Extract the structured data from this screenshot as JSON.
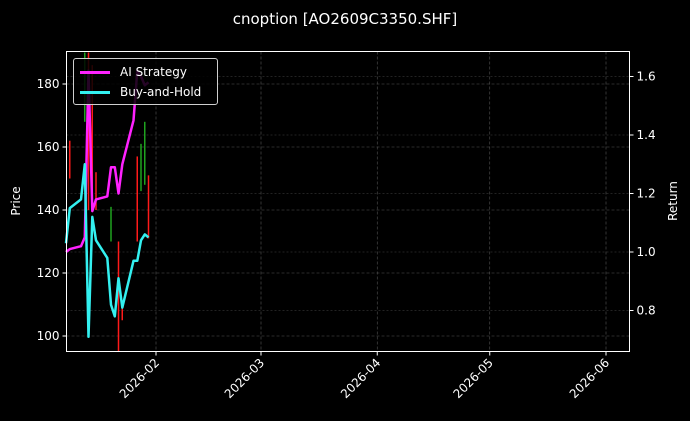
{
  "title": "cnoption [AO2609C3350.SHF]",
  "legend": {
    "items": [
      {
        "label": "AI Strategy",
        "color": "#ff22ff"
      },
      {
        "label": "Buy-and-Hold",
        "color": "#33f0f0"
      }
    ]
  },
  "axes": {
    "left_label": "Price",
    "right_label": "Return",
    "left_ticks": [
      "100",
      "120",
      "140",
      "160",
      "180"
    ],
    "right_ticks": [
      "0.8",
      "1.0",
      "1.2",
      "1.4",
      "1.6"
    ],
    "x_ticks": [
      "2026-02",
      "2026-03",
      "2026-04",
      "2026-05",
      "2026-06"
    ]
  },
  "chart_data": {
    "type": "line",
    "title": "cnoption [AO2609C3350.SHF]",
    "xlabel": "",
    "ylabel": "Price",
    "y2label": "Return",
    "ylim": [
      95,
      191
    ],
    "y2lim": [
      0.66,
      1.69
    ],
    "xlim": [
      "2026-01-08",
      "2026-06-07"
    ],
    "grid": true,
    "legend_position": "upper left",
    "x_ticks": [
      "2026-02",
      "2026-03",
      "2026-04",
      "2026-05",
      "2026-06"
    ],
    "candles": [
      {
        "date": "2026-01-09",
        "open": 161,
        "high": 162,
        "low": 150,
        "close": 150,
        "color": "red"
      },
      {
        "date": "2026-01-13",
        "open": 175,
        "high": 190,
        "low": 168,
        "close": 182,
        "color": "green"
      },
      {
        "date": "2026-01-14",
        "open": 188,
        "high": 190,
        "low": 140,
        "close": 150,
        "color": "red"
      },
      {
        "date": "2026-01-15",
        "open": 182,
        "high": 186,
        "low": 140,
        "close": 145,
        "color": "red"
      },
      {
        "date": "2026-01-16",
        "open": 150,
        "high": 152,
        "low": 140,
        "close": 141,
        "color": "red"
      },
      {
        "date": "2026-01-20",
        "open": 132,
        "high": 141,
        "low": 130,
        "close": 140,
        "color": "green"
      },
      {
        "date": "2026-01-22",
        "open": 120,
        "high": 130,
        "low": 95,
        "close": 100,
        "color": "red"
      },
      {
        "date": "2026-01-23",
        "open": 108,
        "high": 110,
        "low": 105,
        "close": 106,
        "color": "red"
      },
      {
        "date": "2026-01-27",
        "open": 155,
        "high": 157,
        "low": 130,
        "close": 131,
        "color": "red"
      },
      {
        "date": "2026-01-28",
        "open": 148,
        "high": 161,
        "low": 146,
        "close": 158,
        "color": "green"
      },
      {
        "date": "2026-01-29",
        "open": 152,
        "high": 168,
        "low": 148,
        "close": 165,
        "color": "green"
      },
      {
        "date": "2026-01-30",
        "open": 150,
        "high": 151,
        "low": 131,
        "close": 134,
        "color": "red"
      }
    ],
    "series": [
      {
        "name": "AI Strategy",
        "axis": "right",
        "x": [
          "2026-01-08",
          "2026-01-09",
          "2026-01-12",
          "2026-01-13",
          "2026-01-14",
          "2026-01-15",
          "2026-01-16",
          "2026-01-19",
          "2026-01-20",
          "2026-01-21",
          "2026-01-22",
          "2026-01-23",
          "2026-01-26",
          "2026-01-27",
          "2026-01-28",
          "2026-01-29",
          "2026-01-30"
        ],
        "values": [
          1.0,
          1.01,
          1.02,
          1.05,
          1.62,
          1.14,
          1.18,
          1.19,
          1.29,
          1.29,
          1.2,
          1.3,
          1.45,
          1.62,
          1.6,
          1.57,
          1.58
        ]
      },
      {
        "name": "Buy-and-Hold",
        "axis": "right",
        "x": [
          "2026-01-08",
          "2026-01-09",
          "2026-01-12",
          "2026-01-13",
          "2026-01-14",
          "2026-01-15",
          "2026-01-16",
          "2026-01-19",
          "2026-01-20",
          "2026-01-21",
          "2026-01-22",
          "2026-01-23",
          "2026-01-26",
          "2026-01-27",
          "2026-01-28",
          "2026-01-29",
          "2026-01-30"
        ],
        "values": [
          1.03,
          1.15,
          1.18,
          1.3,
          0.71,
          1.12,
          1.04,
          0.98,
          0.82,
          0.78,
          0.91,
          0.81,
          0.97,
          0.97,
          1.04,
          1.06,
          1.05
        ]
      }
    ]
  }
}
